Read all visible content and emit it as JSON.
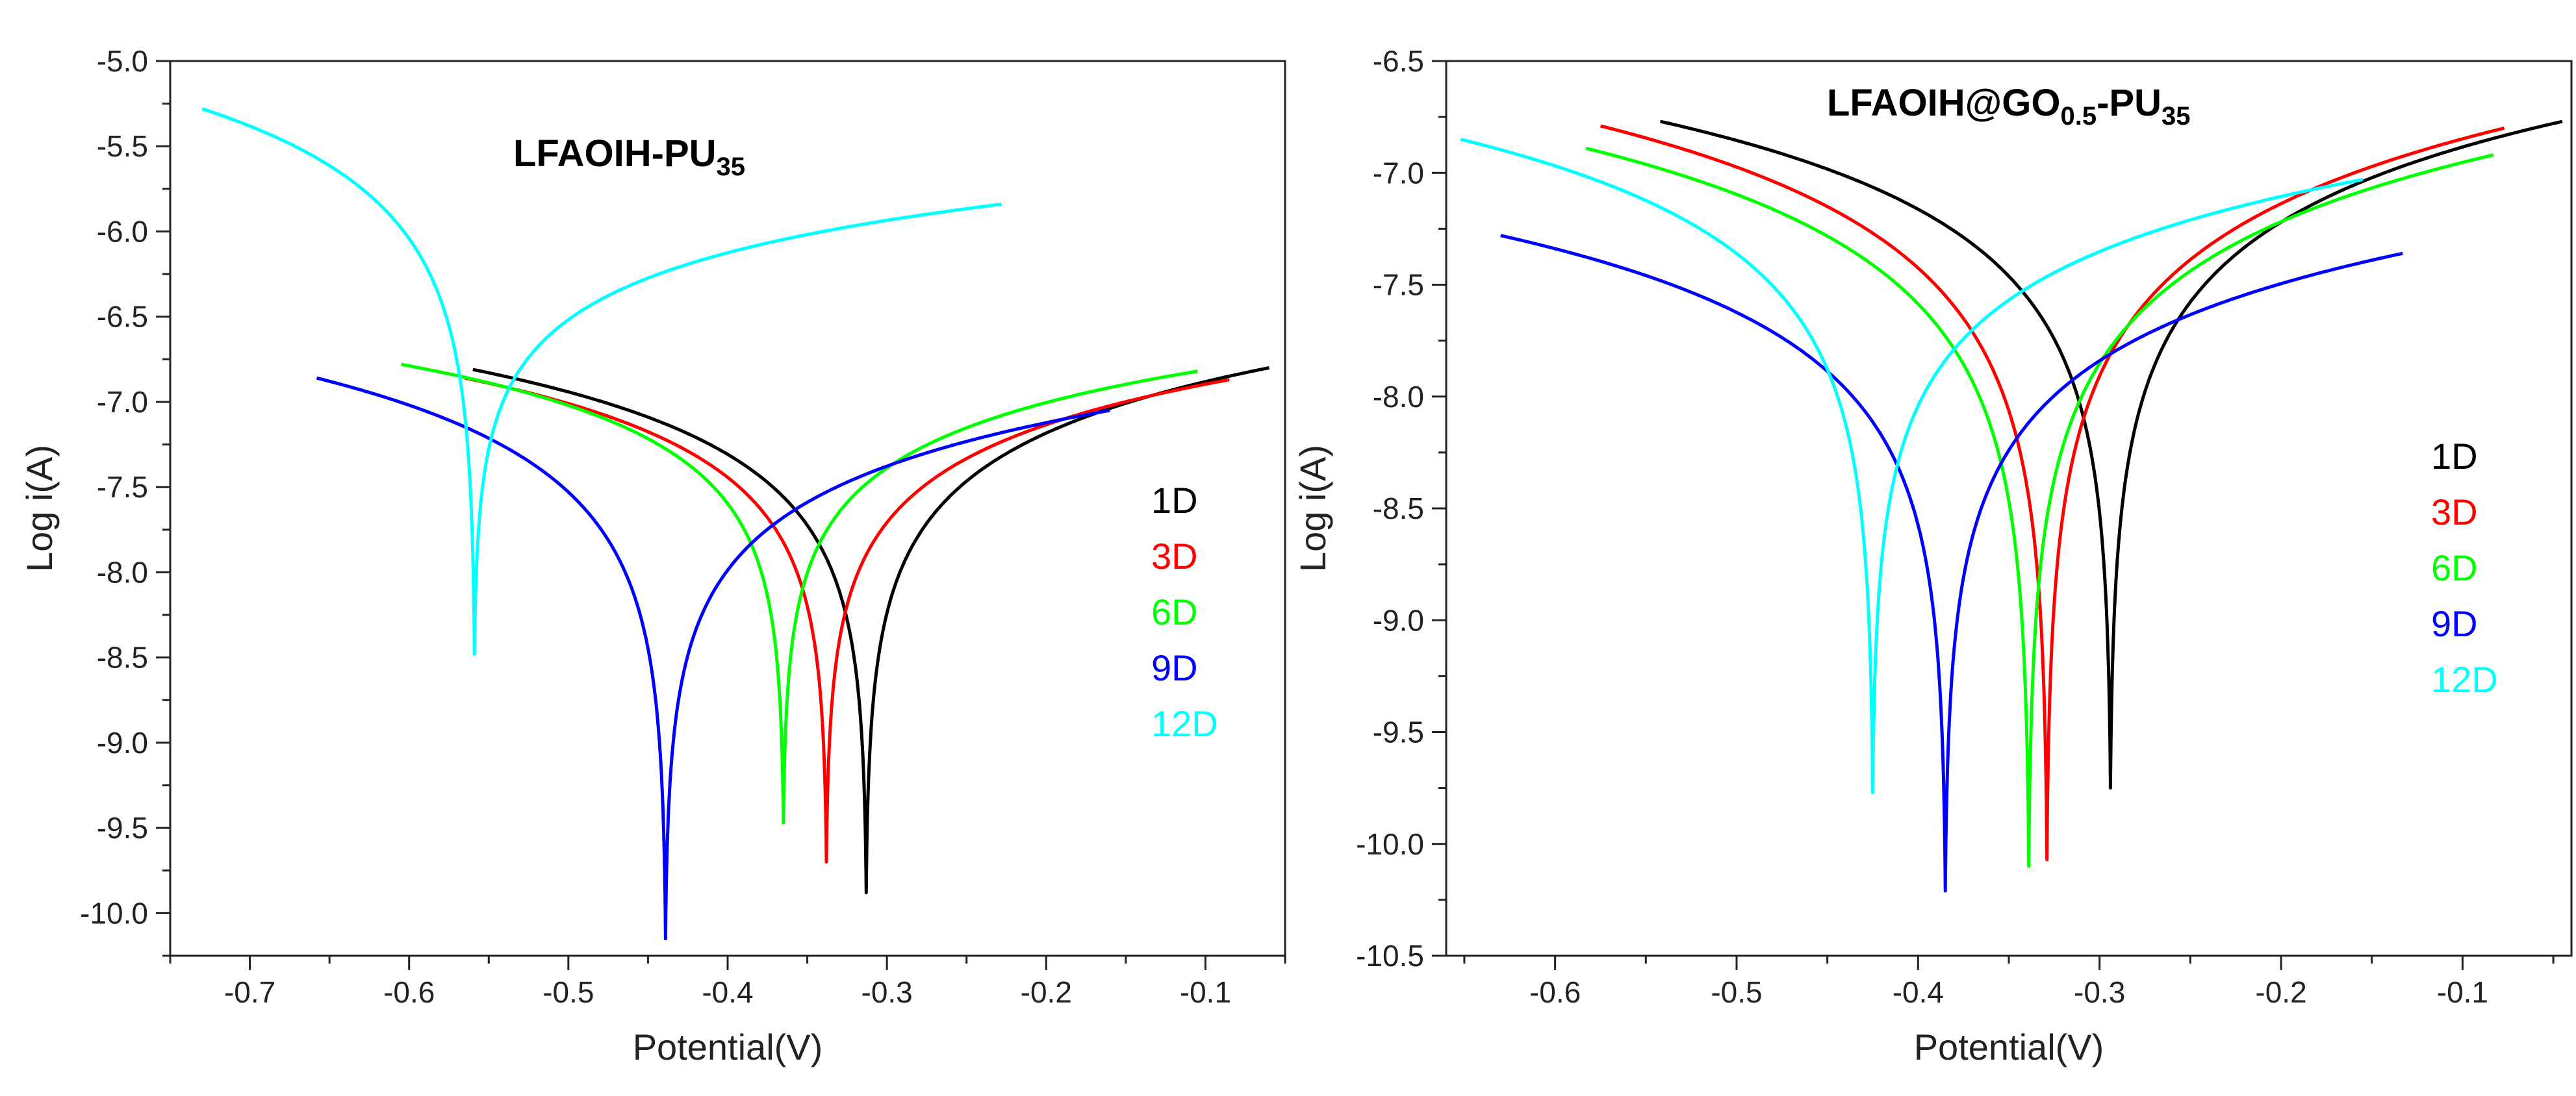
{
  "chart_data": [
    {
      "type": "line",
      "title": "LFAOIH-PU",
      "title_subscript": "35",
      "xlabel": "Potential(V)",
      "ylabel": "Log i(A)",
      "xlim": [
        -0.75,
        -0.05
      ],
      "ylim": [
        -10.25,
        -5.0
      ],
      "xticks": [
        -0.7,
        -0.6,
        -0.5,
        -0.4,
        -0.3,
        -0.2,
        -0.1
      ],
      "xtick_labels": [
        "-0.7",
        "-0.6",
        "-0.5",
        "-0.4",
        "-0.3",
        "-0.2",
        "-0.1"
      ],
      "yticks": [
        -5.0,
        -5.5,
        -6.0,
        -6.5,
        -7.0,
        -7.5,
        -8.0,
        -8.5,
        -9.0,
        -9.5,
        -10.0
      ],
      "ytick_labels": [
        "-5.0",
        "-5.5",
        "-6.0",
        "-6.5",
        "-7.0",
        "-7.5",
        "-8.0",
        "-8.5",
        "-9.0",
        "-9.5",
        "-10.0"
      ],
      "legend": "center-right",
      "series": [
        {
          "name": "1D",
          "color": "#000000",
          "ecorr": -0.313,
          "vmin": -9.88,
          "xstart": -0.56,
          "ystart": -6.81,
          "xend": -0.06,
          "yend": -6.8
        },
        {
          "name": "3D",
          "color": "#ff0000",
          "ecorr": -0.338,
          "vmin": -9.7,
          "xstart": -0.565,
          "ystart": -6.86,
          "xend": -0.085,
          "yend": -6.87
        },
        {
          "name": "6D",
          "color": "#00ff00",
          "ecorr": -0.365,
          "vmin": -9.47,
          "xstart": -0.605,
          "ystart": -6.78,
          "xend": -0.105,
          "yend": -6.82
        },
        {
          "name": "9D",
          "color": "#0000ff",
          "ecorr": -0.439,
          "vmin": -10.15,
          "xstart": -0.658,
          "ystart": -6.86,
          "xend": -0.16,
          "yend": -7.05
        },
        {
          "name": "12D",
          "color": "#00ffff",
          "ecorr": -0.559,
          "vmin": -8.48,
          "xstart": -0.73,
          "ystart": -5.28,
          "xend": -0.228,
          "yend": -5.84
        }
      ]
    },
    {
      "type": "line",
      "title": "LFAOIH@GO",
      "title_sub1": "0.5",
      "title_mid": "-PU",
      "title_subscript": "35",
      "xlabel": "Potential(V)",
      "ylabel": "Log i(A)",
      "xlim": [
        -0.66,
        -0.04
      ],
      "ylim": [
        -10.5,
        -6.5
      ],
      "xticks": [
        -0.6,
        -0.5,
        -0.4,
        -0.3,
        -0.2,
        -0.1
      ],
      "xtick_labels": [
        "-0.6",
        "-0.5",
        "-0.4",
        "-0.3",
        "-0.2",
        "-0.1"
      ],
      "yticks": [
        -6.5,
        -7.0,
        -7.5,
        -8.0,
        -8.5,
        -9.0,
        -9.5,
        -10.0,
        -10.5
      ],
      "ytick_labels": [
        "-6.5",
        "-7.0",
        "-7.5",
        "-8.0",
        "-8.5",
        "-9.0",
        "-9.5",
        "-10.0",
        "-10.5"
      ],
      "legend": "center-right",
      "series": [
        {
          "name": "1D",
          "color": "#000000",
          "ecorr": -0.294,
          "vmin": -9.75,
          "xstart": -0.542,
          "ystart": -6.77,
          "xend": -0.045,
          "yend": -6.77
        },
        {
          "name": "3D",
          "color": "#ff0000",
          "ecorr": -0.329,
          "vmin": -10.07,
          "xstart": -0.575,
          "ystart": -6.79,
          "xend": -0.077,
          "yend": -6.8
        },
        {
          "name": "6D",
          "color": "#00ff00",
          "ecorr": -0.339,
          "vmin": -10.1,
          "xstart": -0.583,
          "ystart": -6.89,
          "xend": -0.083,
          "yend": -6.92
        },
        {
          "name": "9D",
          "color": "#0000ff",
          "ecorr": -0.385,
          "vmin": -10.21,
          "xstart": -0.63,
          "ystart": -7.28,
          "xend": -0.133,
          "yend": -7.36
        },
        {
          "name": "12D",
          "color": "#00ffff",
          "ecorr": -0.425,
          "vmin": -9.77,
          "xstart": -0.652,
          "ystart": -6.85,
          "xend": -0.155,
          "yend": -7.03
        }
      ]
    }
  ]
}
